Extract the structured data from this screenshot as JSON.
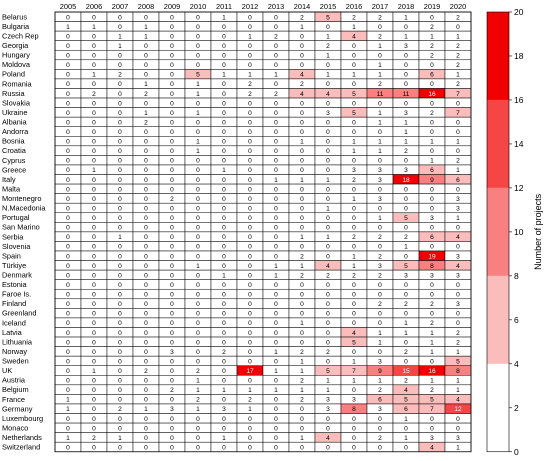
{
  "chart_data": {
    "type": "heatmap",
    "title": "",
    "xlabel": "",
    "ylabel": "",
    "x": [
      "2005",
      "2006",
      "2007",
      "2008",
      "2009",
      "2010",
      "2011",
      "2012",
      "2013",
      "2014",
      "2015",
      "2016",
      "2017",
      "2018",
      "2019",
      "2020"
    ],
    "y": [
      "Belarus",
      "Bulgaria",
      "Czech Rep",
      "Georgia",
      "Hungary",
      "Moldova",
      "Poland",
      "Romania",
      "Russia",
      "Slovakia",
      "Ukraine",
      "Albania",
      "Andorra",
      "Bosnia",
      "Croatia",
      "Cyprus",
      "Greece",
      "Italy",
      "Malta",
      "Montenegro",
      "N.Macedonia",
      "Portugal",
      "San Marino",
      "Serbia",
      "Slovenia",
      "Spain",
      "Türkiye",
      "Denmark",
      "Estonia",
      "Faroe Is.",
      "Finland",
      "Greenland",
      "Iceland",
      "Latvia",
      "Lithuania",
      "Norway",
      "Sweden",
      "UK",
      "Austria",
      "Belgium",
      "France",
      "Germany",
      "Luxembourg",
      "Monaco",
      "Netherlands",
      "Switzerland"
    ],
    "values": [
      [
        0,
        0,
        0,
        0,
        0,
        0,
        1,
        0,
        0,
        2,
        5,
        2,
        2,
        1,
        0,
        2
      ],
      [
        1,
        1,
        0,
        1,
        0,
        0,
        0,
        0,
        0,
        1,
        0,
        1,
        0,
        0,
        2,
        0
      ],
      [
        0,
        0,
        1,
        1,
        0,
        0,
        0,
        1,
        2,
        0,
        1,
        4,
        2,
        1,
        1,
        1
      ],
      [
        0,
        0,
        1,
        0,
        0,
        0,
        0,
        0,
        0,
        0,
        2,
        0,
        1,
        3,
        2,
        2
      ],
      [
        0,
        0,
        0,
        0,
        0,
        0,
        0,
        0,
        0,
        0,
        1,
        0,
        0,
        0,
        2,
        2
      ],
      [
        0,
        0,
        0,
        0,
        0,
        0,
        0,
        0,
        0,
        0,
        0,
        0,
        1,
        0,
        0,
        2
      ],
      [
        0,
        1,
        2,
        0,
        0,
        5,
        1,
        1,
        1,
        4,
        1,
        1,
        1,
        0,
        6,
        1
      ],
      [
        0,
        0,
        0,
        1,
        0,
        1,
        0,
        2,
        0,
        2,
        0,
        0,
        2,
        0,
        0,
        2
      ],
      [
        0,
        2,
        0,
        2,
        0,
        1,
        0,
        2,
        2,
        4,
        4,
        5,
        11,
        11,
        16,
        7
      ],
      [
        0,
        0,
        0,
        0,
        0,
        0,
        0,
        0,
        0,
        0,
        0,
        0,
        0,
        0,
        0,
        0
      ],
      [
        0,
        0,
        0,
        1,
        0,
        1,
        0,
        0,
        0,
        0,
        3,
        5,
        1,
        3,
        2,
        7
      ],
      [
        0,
        0,
        0,
        2,
        0,
        0,
        0,
        0,
        0,
        0,
        0,
        0,
        1,
        1,
        0,
        0
      ],
      [
        0,
        0,
        0,
        0,
        0,
        0,
        0,
        0,
        0,
        0,
        0,
        0,
        0,
        1,
        0,
        0
      ],
      [
        0,
        0,
        0,
        0,
        0,
        1,
        0,
        0,
        0,
        1,
        0,
        1,
        1,
        1,
        1,
        1
      ],
      [
        0,
        0,
        0,
        0,
        0,
        1,
        0,
        0,
        0,
        0,
        0,
        1,
        1,
        2,
        0,
        0
      ],
      [
        0,
        0,
        0,
        0,
        0,
        0,
        0,
        0,
        0,
        0,
        0,
        0,
        0,
        0,
        1,
        2
      ],
      [
        0,
        1,
        0,
        0,
        0,
        0,
        1,
        0,
        0,
        0,
        0,
        3,
        3,
        3,
        6,
        1
      ],
      [
        0,
        0,
        0,
        0,
        0,
        0,
        0,
        0,
        1,
        1,
        1,
        2,
        3,
        18,
        9,
        6
      ],
      [
        0,
        0,
        0,
        0,
        0,
        0,
        0,
        0,
        0,
        0,
        0,
        0,
        0,
        0,
        0,
        0
      ],
      [
        0,
        0,
        0,
        0,
        2,
        0,
        0,
        0,
        0,
        0,
        0,
        1,
        3,
        0,
        0,
        3
      ],
      [
        0,
        0,
        0,
        0,
        0,
        0,
        0,
        0,
        0,
        0,
        1,
        0,
        0,
        0,
        0,
        3
      ],
      [
        0,
        0,
        0,
        0,
        0,
        0,
        0,
        0,
        0,
        0,
        0,
        0,
        1,
        5,
        3,
        1
      ],
      [
        0,
        0,
        0,
        0,
        0,
        0,
        0,
        0,
        0,
        0,
        0,
        0,
        0,
        0,
        0,
        0
      ],
      [
        0,
        0,
        1,
        0,
        0,
        0,
        0,
        0,
        0,
        1,
        1,
        2,
        2,
        2,
        6,
        4
      ],
      [
        0,
        0,
        0,
        0,
        0,
        0,
        0,
        0,
        0,
        0,
        0,
        0,
        0,
        1,
        0,
        0
      ],
      [
        0,
        0,
        0,
        0,
        0,
        0,
        0,
        0,
        0,
        2,
        0,
        1,
        2,
        0,
        19,
        3
      ],
      [
        0,
        0,
        0,
        0,
        0,
        1,
        0,
        0,
        1,
        1,
        4,
        1,
        3,
        5,
        8,
        4
      ],
      [
        0,
        0,
        0,
        0,
        0,
        0,
        1,
        0,
        1,
        2,
        2,
        2,
        2,
        3,
        3,
        3
      ],
      [
        0,
        0,
        0,
        0,
        0,
        0,
        0,
        0,
        0,
        0,
        0,
        0,
        0,
        0,
        0,
        0
      ],
      [
        0,
        0,
        0,
        0,
        0,
        0,
        0,
        0,
        0,
        0,
        0,
        0,
        0,
        0,
        0,
        0
      ],
      [
        0,
        0,
        0,
        0,
        0,
        0,
        0,
        0,
        0,
        0,
        0,
        0,
        2,
        2,
        2,
        3
      ],
      [
        0,
        0,
        0,
        0,
        0,
        0,
        0,
        0,
        0,
        0,
        0,
        0,
        0,
        0,
        0,
        0
      ],
      [
        0,
        0,
        0,
        0,
        0,
        0,
        0,
        0,
        0,
        1,
        0,
        0,
        0,
        1,
        2,
        0
      ],
      [
        0,
        0,
        0,
        0,
        0,
        0,
        0,
        0,
        0,
        0,
        0,
        4,
        1,
        1,
        1,
        2
      ],
      [
        0,
        0,
        0,
        0,
        0,
        0,
        0,
        0,
        0,
        0,
        0,
        5,
        1,
        0,
        1,
        2
      ],
      [
        0,
        0,
        0,
        0,
        3,
        0,
        2,
        0,
        1,
        2,
        2,
        0,
        0,
        2,
        1,
        1
      ],
      [
        0,
        0,
        0,
        0,
        0,
        0,
        0,
        0,
        0,
        1,
        0,
        1,
        3,
        0,
        0,
        5
      ],
      [
        0,
        1,
        0,
        2,
        0,
        2,
        0,
        17,
        1,
        1,
        5,
        7,
        9,
        15,
        16,
        8
      ],
      [
        0,
        0,
        0,
        0,
        0,
        1,
        0,
        0,
        0,
        2,
        1,
        1,
        1,
        2,
        1,
        1
      ],
      [
        0,
        0,
        0,
        0,
        2,
        1,
        1,
        1,
        1,
        1,
        1,
        0,
        2,
        4,
        2,
        1
      ],
      [
        1,
        0,
        0,
        0,
        0,
        2,
        0,
        2,
        0,
        2,
        3,
        3,
        6,
        5,
        5,
        4
      ],
      [
        1,
        0,
        2,
        1,
        3,
        1,
        3,
        1,
        0,
        0,
        3,
        8,
        3,
        6,
        7,
        12
      ],
      [
        0,
        0,
        0,
        0,
        0,
        0,
        0,
        0,
        0,
        0,
        0,
        0,
        0,
        1,
        0,
        0
      ],
      [
        0,
        0,
        0,
        0,
        0,
        0,
        0,
        0,
        0,
        0,
        0,
        0,
        0,
        0,
        0,
        0
      ],
      [
        1,
        2,
        1,
        0,
        0,
        0,
        1,
        0,
        0,
        1,
        4,
        0,
        2,
        1,
        3,
        3
      ],
      [
        0,
        0,
        0,
        0,
        0,
        0,
        0,
        0,
        0,
        0,
        0,
        0,
        0,
        0,
        4,
        1
      ]
    ],
    "colorbar": {
      "label": "Number of projects",
      "ticks": [
        0,
        2,
        4,
        6,
        8,
        10,
        12,
        14,
        16,
        18,
        20
      ],
      "range": [
        0,
        20
      ],
      "bins": [
        {
          "from": 0,
          "to": 4,
          "color": "#ffffff"
        },
        {
          "from": 4,
          "to": 8,
          "color": "#fbbcbc"
        },
        {
          "from": 8,
          "to": 12,
          "color": "#f88080"
        },
        {
          "from": 12,
          "to": 16,
          "color": "#f64545"
        },
        {
          "from": 16,
          "to": 20,
          "color": "#f00000"
        }
      ]
    }
  }
}
